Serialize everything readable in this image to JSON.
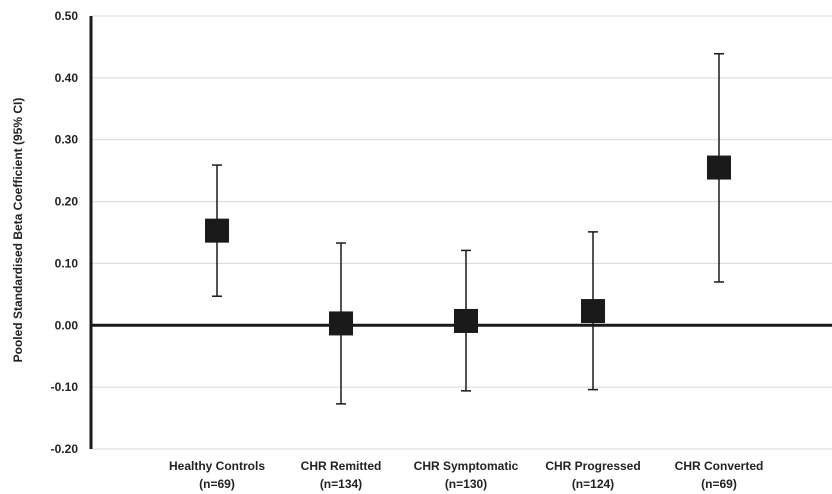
{
  "chart_data": {
    "type": "scatter",
    "title": "",
    "xlabel": "",
    "ylabel": "Pooled Standardised Beta Coefficient (95% CI)",
    "ylim": [
      -0.2,
      0.5
    ],
    "yticks": [
      "0.50",
      "0.40",
      "0.30",
      "0.20",
      "0.10",
      "0.00",
      "-0.10",
      "-0.20"
    ],
    "ytick_values": [
      0.5,
      0.4,
      0.3,
      0.2,
      0.1,
      0.0,
      -0.1,
      -0.2
    ],
    "grid": true,
    "categories": [
      {
        "name": "Healthy Controls",
        "n": "(n=69)"
      },
      {
        "name": "CHR Remitted",
        "n": "(n=134)"
      },
      {
        "name": "CHR Symptomatic",
        "n": "(n=130)"
      },
      {
        "name": "CHR Progressed",
        "n": "(n=124)"
      },
      {
        "name": "CHR Converted",
        "n": "(n=69)"
      }
    ],
    "estimate": [
      0.153,
      0.003,
      0.007,
      0.023,
      0.255
    ],
    "ci_lower": [
      0.047,
      -0.127,
      -0.106,
      -0.104,
      0.07
    ],
    "ci_upper": [
      0.259,
      0.133,
      0.121,
      0.151,
      0.439
    ],
    "marker_color": "#1a1a1a",
    "axis_color": "#1a1a1a",
    "grid_color": "#d9d9d9"
  }
}
